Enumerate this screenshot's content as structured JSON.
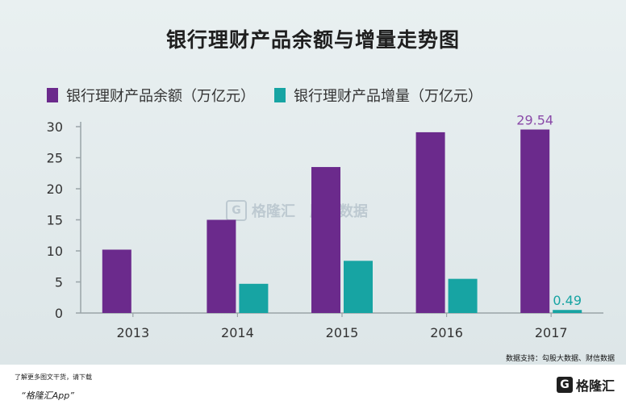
{
  "colors": {
    "series1": "#6b2a8c",
    "series2": "#17a4a3",
    "label1": "#8a4aa8",
    "label2": "#17a4a3"
  },
  "page": {
    "title": "银行理财产品余额与增量走势图",
    "source": "数据支持：勾股大数据、财信数据",
    "footer_note": "了解更多图文干货，请下载",
    "footer_app": "“格隆汇App”",
    "brand_logo": "G",
    "brand": "格隆汇",
    "watermark_logo": "G",
    "watermark_1": "格隆汇",
    "watermark_2": "股大数据"
  },
  "chart_data": {
    "type": "bar",
    "title": "银行理财产品余额与增量走势图",
    "categories": [
      "2013",
      "2014",
      "2015",
      "2016",
      "2017"
    ],
    "series": [
      {
        "name": "银行理财产品余额（万亿元）",
        "values": [
          10.2,
          15.0,
          23.5,
          29.1,
          29.54
        ]
      },
      {
        "name": "银行理财产品增量（万亿元）",
        "values": [
          null,
          4.7,
          8.4,
          5.5,
          0.49
        ]
      }
    ],
    "data_labels": [
      {
        "series": 0,
        "index": 4,
        "text": "29.54"
      },
      {
        "series": 1,
        "index": 4,
        "text": "0.49"
      }
    ],
    "yticks": [
      "0",
      "5",
      "10",
      "15",
      "20",
      "25",
      "30"
    ],
    "ylim": [
      0,
      30
    ],
    "grid": false,
    "legend": "top-left"
  }
}
